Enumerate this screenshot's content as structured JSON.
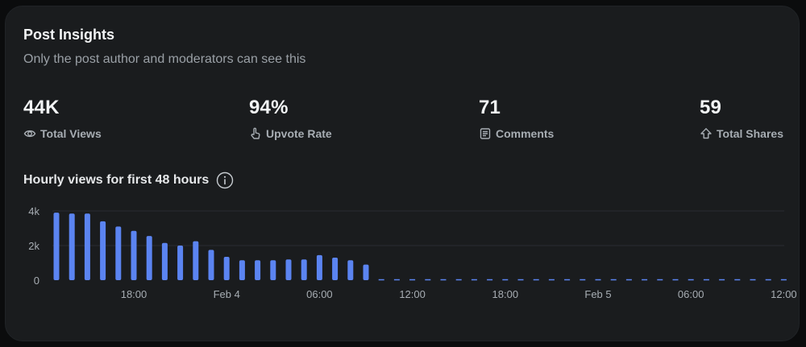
{
  "card": {
    "title": "Post Insights",
    "subtitle": "Only the post author and moderators can see this"
  },
  "stats": [
    {
      "value": "44K",
      "label": "Total Views",
      "icon": "views-icon"
    },
    {
      "value": "94%",
      "label": "Upvote Rate",
      "icon": "upvote-hand-icon"
    },
    {
      "value": "71",
      "label": "Comments",
      "icon": "comments-icon"
    },
    {
      "value": "59",
      "label": "Total Shares",
      "icon": "share-icon"
    }
  ],
  "chart_title": "Hourly views for first 48 hours",
  "colors": {
    "bar": "#5b84f1",
    "grid": "#2a2d31",
    "text": "#a7adb3"
  },
  "chart_data": {
    "type": "bar",
    "title": "Hourly views for first 48 hours",
    "xlabel": "",
    "ylabel": "",
    "ylim": [
      0,
      4000
    ],
    "yticks": [
      {
        "value": 0,
        "label": "0"
      },
      {
        "value": 2000,
        "label": "2k"
      },
      {
        "value": 4000,
        "label": "4k"
      }
    ],
    "x_tick_labels": [
      {
        "hour_index": 5,
        "label": "18:00"
      },
      {
        "hour_index": 11,
        "label": "Feb 4"
      },
      {
        "hour_index": 17,
        "label": "06:00"
      },
      {
        "hour_index": 23,
        "label": "12:00"
      },
      {
        "hour_index": 29,
        "label": "18:00"
      },
      {
        "hour_index": 35,
        "label": "Feb 5"
      },
      {
        "hour_index": 41,
        "label": "06:00"
      },
      {
        "hour_index": 47,
        "label": "12:00"
      }
    ],
    "values": [
      3900,
      3850,
      3850,
      3400,
      3100,
      2850,
      2550,
      2150,
      2000,
      2250,
      1750,
      1350,
      1150,
      1150,
      1150,
      1200,
      1200,
      1450,
      1300,
      1150,
      900,
      null,
      null,
      null,
      null,
      null,
      null,
      null,
      null,
      null,
      null,
      null,
      null,
      null,
      null,
      null,
      null,
      null,
      null,
      null,
      null,
      null,
      null,
      null,
      null,
      null,
      null,
      null
    ],
    "grid": true,
    "legend": "none"
  }
}
